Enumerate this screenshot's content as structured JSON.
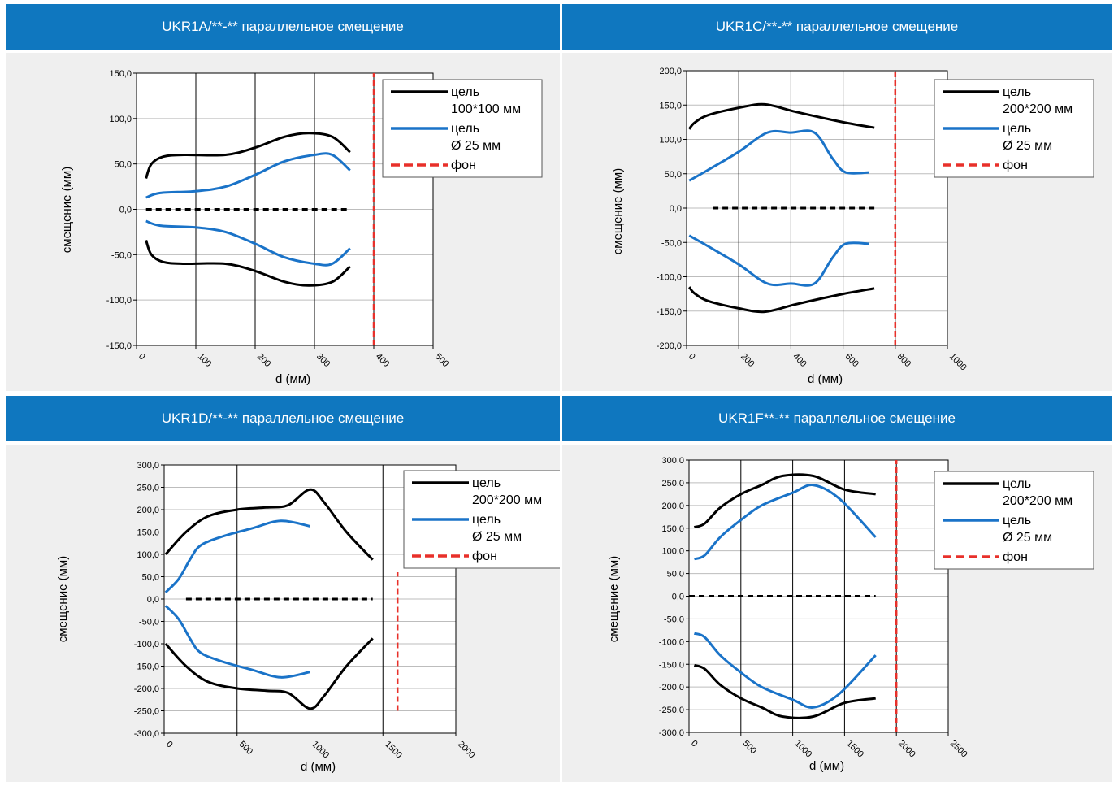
{
  "chart_data": [
    {
      "type": "line",
      "title": "UKR1A/**-** параллельное смещение",
      "xlabel": "d (мм)",
      "ylabel": "смещение (мм)",
      "xlim": [
        0,
        500
      ],
      "ylim": [
        -150,
        150
      ],
      "xticks": [
        0,
        100,
        200,
        300,
        400,
        500
      ],
      "yticks": [
        -150,
        -100,
        -50,
        0,
        50,
        100,
        150
      ],
      "xtick_labels": [
        "0",
        "100",
        "200",
        "300",
        "400",
        "500"
      ],
      "ytick_labels": [
        "-150,0",
        "-100,0",
        "-50,0",
        "0,0",
        "50,0",
        "100,0",
        "150,0"
      ],
      "legend": {
        "placement": "top-right",
        "entries": [
          [
            "цель",
            "100*100 мм"
          ],
          [
            "цель",
            "Ø 25 мм"
          ],
          [
            "фон"
          ]
        ]
      },
      "series": [
        {
          "color": "#000000",
          "dash": false,
          "points": [
            [
              16,
              34
            ],
            [
              25,
              50
            ],
            [
              45,
              58
            ],
            [
              80,
              60
            ],
            [
              150,
              60
            ],
            [
              200,
              68
            ],
            [
              250,
              80
            ],
            [
              290,
              84
            ],
            [
              330,
              80
            ],
            [
              360,
              63
            ]
          ]
        },
        {
          "color": "#000000",
          "dash": false,
          "points": [
            [
              16,
              -34
            ],
            [
              25,
              -50
            ],
            [
              45,
              -58
            ],
            [
              80,
              -60
            ],
            [
              150,
              -60
            ],
            [
              200,
              -68
            ],
            [
              250,
              -80
            ],
            [
              290,
              -84
            ],
            [
              330,
              -80
            ],
            [
              360,
              -63
            ]
          ]
        },
        {
          "color": "#1a73c8",
          "dash": false,
          "points": [
            [
              16,
              13
            ],
            [
              40,
              18
            ],
            [
              100,
              20
            ],
            [
              150,
              25
            ],
            [
              200,
              38
            ],
            [
              250,
              53
            ],
            [
              300,
              60
            ],
            [
              330,
              60
            ],
            [
              360,
              43
            ]
          ]
        },
        {
          "color": "#1a73c8",
          "dash": false,
          "points": [
            [
              16,
              -13
            ],
            [
              40,
              -18
            ],
            [
              100,
              -20
            ],
            [
              150,
              -25
            ],
            [
              200,
              -38
            ],
            [
              250,
              -53
            ],
            [
              300,
              -60
            ],
            [
              330,
              -60
            ],
            [
              360,
              -43
            ]
          ]
        },
        {
          "color": "#000000",
          "dash": true,
          "points": [
            [
              16,
              0
            ],
            [
              360,
              0
            ]
          ]
        },
        {
          "color": "#e8302a",
          "dash": true,
          "points": [
            [
              400,
              -150
            ],
            [
              400,
              150
            ]
          ]
        }
      ]
    },
    {
      "type": "line",
      "title": "UKR1C/**-** параллельное смещение",
      "xlabel": "d (мм)",
      "ylabel": "смещение (мм)",
      "xlim": [
        0,
        1000
      ],
      "ylim": [
        -200,
        200
      ],
      "xticks": [
        0,
        200,
        400,
        600,
        800,
        1000
      ],
      "yticks": [
        -200,
        -150,
        -100,
        -50,
        0,
        50,
        100,
        150,
        200
      ],
      "xtick_labels": [
        "0",
        "200",
        "400",
        "600",
        "800",
        "1000"
      ],
      "ytick_labels": [
        "-200,0",
        "-150,0",
        "-100,0",
        "-50,0",
        "0,0",
        "50,0",
        "100,0",
        "150,0",
        "200,0"
      ],
      "legend": {
        "placement": "top-right",
        "entries": [
          [
            "цель",
            "200*200 мм"
          ],
          [
            "цель",
            "Ø 25 мм"
          ],
          [
            "фон"
          ]
        ]
      },
      "series": [
        {
          "color": "#000000",
          "dash": false,
          "points": [
            [
              10,
              115
            ],
            [
              30,
              124
            ],
            [
              80,
              135
            ],
            [
              200,
              146
            ],
            [
              300,
              151
            ],
            [
              420,
              140
            ],
            [
              600,
              125
            ],
            [
              720,
              117
            ]
          ]
        },
        {
          "color": "#000000",
          "dash": false,
          "points": [
            [
              10,
              -115
            ],
            [
              30,
              -124
            ],
            [
              80,
              -135
            ],
            [
              200,
              -146
            ],
            [
              300,
              -151
            ],
            [
              420,
              -140
            ],
            [
              600,
              -125
            ],
            [
              720,
              -117
            ]
          ]
        },
        {
          "color": "#1a73c8",
          "dash": false,
          "points": [
            [
              10,
              40
            ],
            [
              80,
              55
            ],
            [
              200,
              82
            ],
            [
              310,
              110
            ],
            [
              400,
              110
            ],
            [
              490,
              110
            ],
            [
              560,
              72
            ],
            [
              610,
              52
            ],
            [
              700,
              52
            ]
          ]
        },
        {
          "color": "#1a73c8",
          "dash": false,
          "points": [
            [
              10,
              -40
            ],
            [
              80,
              -55
            ],
            [
              200,
              -82
            ],
            [
              310,
              -110
            ],
            [
              400,
              -110
            ],
            [
              490,
              -110
            ],
            [
              560,
              -72
            ],
            [
              610,
              -52
            ],
            [
              700,
              -52
            ]
          ]
        },
        {
          "color": "#000000",
          "dash": true,
          "points": [
            [
              100,
              0
            ],
            [
              720,
              0
            ]
          ]
        },
        {
          "color": "#e8302a",
          "dash": true,
          "points": [
            [
              800,
              -200
            ],
            [
              800,
              200
            ]
          ]
        }
      ]
    },
    {
      "type": "line",
      "title": "UKR1D/**-** параллельное смещение",
      "xlabel": "d (мм)",
      "ylabel": "смещение (мм)",
      "xlim": [
        0,
        2000
      ],
      "ylim": [
        -300,
        300
      ],
      "xticks": [
        0,
        500,
        1000,
        1500,
        2000
      ],
      "yticks": [
        -300,
        -250,
        -200,
        -150,
        -100,
        -50,
        0,
        50,
        100,
        150,
        200,
        250,
        300
      ],
      "xtick_labels": [
        "0",
        "500",
        "1000",
        "1500",
        "2000"
      ],
      "ytick_labels": [
        "-300,0",
        "-250,0",
        "-200,0",
        "-150,0",
        "-100,0",
        "-50,0",
        "0,0",
        "50,0",
        "100,0",
        "150,0",
        "200,0",
        "250,0",
        "300,0"
      ],
      "legend": {
        "placement": "top-right",
        "entries": [
          [
            "цель",
            "200*200 мм"
          ],
          [
            "цель",
            "Ø 25 мм"
          ],
          [
            "фон"
          ]
        ]
      },
      "series": [
        {
          "color": "#000000",
          "dash": false,
          "points": [
            [
              10,
              100
            ],
            [
              150,
              150
            ],
            [
              300,
              185
            ],
            [
              500,
              200
            ],
            [
              700,
              205
            ],
            [
              850,
              210
            ],
            [
              1000,
              245
            ],
            [
              1100,
              215
            ],
            [
              1250,
              150
            ],
            [
              1430,
              88
            ]
          ]
        },
        {
          "color": "#000000",
          "dash": false,
          "points": [
            [
              10,
              -100
            ],
            [
              150,
              -150
            ],
            [
              300,
              -185
            ],
            [
              500,
              -200
            ],
            [
              700,
              -205
            ],
            [
              850,
              -210
            ],
            [
              1000,
              -245
            ],
            [
              1100,
              -215
            ],
            [
              1250,
              -150
            ],
            [
              1430,
              -88
            ]
          ]
        },
        {
          "color": "#1a73c8",
          "dash": false,
          "points": [
            [
              10,
              15
            ],
            [
              100,
              45
            ],
            [
              180,
              90
            ],
            [
              250,
              120
            ],
            [
              400,
              140
            ],
            [
              600,
              158
            ],
            [
              800,
              175
            ],
            [
              1000,
              163
            ]
          ]
        },
        {
          "color": "#1a73c8",
          "dash": false,
          "points": [
            [
              10,
              -15
            ],
            [
              100,
              -45
            ],
            [
              180,
              -90
            ],
            [
              250,
              -120
            ],
            [
              400,
              -140
            ],
            [
              600,
              -158
            ],
            [
              800,
              -175
            ],
            [
              1000,
              -163
            ]
          ]
        },
        {
          "color": "#000000",
          "dash": true,
          "points": [
            [
              150,
              0
            ],
            [
              1430,
              0
            ]
          ]
        },
        {
          "color": "#e8302a",
          "dash": true,
          "points": [
            [
              1600,
              -250
            ],
            [
              1600,
              60
            ]
          ]
        }
      ]
    },
    {
      "type": "line",
      "title": "UKR1F**-** параллельное смещение",
      "xlabel": "d (мм)",
      "ylabel": "смещение (мм)",
      "xlim": [
        0,
        2500
      ],
      "ylim": [
        -300,
        300
      ],
      "xticks": [
        0,
        500,
        1000,
        1500,
        2000,
        2500
      ],
      "yticks": [
        -300,
        -250,
        -200,
        -150,
        -100,
        -50,
        0,
        50,
        100,
        150,
        200,
        250,
        300
      ],
      "xtick_labels": [
        "0",
        "500",
        "1000",
        "1500",
        "2000",
        "2500"
      ],
      "ytick_labels": [
        "-300,0",
        "-250,0",
        "-200,0",
        "-150,0",
        "-100,0",
        "-50,0",
        "0,0",
        "50,0",
        "100,0",
        "150,0",
        "200,0",
        "250,0",
        "300,0"
      ],
      "legend": {
        "placement": "top-right",
        "entries": [
          [
            "цель",
            "200*200 мм"
          ],
          [
            "цель",
            "Ø 25 мм"
          ],
          [
            "фон"
          ]
        ]
      },
      "series": [
        {
          "color": "#000000",
          "dash": false,
          "points": [
            [
              50,
              152
            ],
            [
              150,
              160
            ],
            [
              300,
              195
            ],
            [
              500,
              225
            ],
            [
              700,
              245
            ],
            [
              900,
              265
            ],
            [
              1200,
              265
            ],
            [
              1500,
              235
            ],
            [
              1800,
              225
            ]
          ]
        },
        {
          "color": "#000000",
          "dash": false,
          "points": [
            [
              50,
              -152
            ],
            [
              150,
              -160
            ],
            [
              300,
              -195
            ],
            [
              500,
              -225
            ],
            [
              700,
              -245
            ],
            [
              900,
              -265
            ],
            [
              1200,
              -265
            ],
            [
              1500,
              -235
            ],
            [
              1800,
              -225
            ]
          ]
        },
        {
          "color": "#1a73c8",
          "dash": false,
          "points": [
            [
              50,
              82
            ],
            [
              150,
              90
            ],
            [
              300,
              130
            ],
            [
              500,
              168
            ],
            [
              700,
              200
            ],
            [
              1000,
              228
            ],
            [
              1200,
              245
            ],
            [
              1450,
              215
            ],
            [
              1800,
              130
            ]
          ]
        },
        {
          "color": "#1a73c8",
          "dash": false,
          "points": [
            [
              50,
              -82
            ],
            [
              150,
              -90
            ],
            [
              300,
              -130
            ],
            [
              500,
              -168
            ],
            [
              700,
              -200
            ],
            [
              1000,
              -228
            ],
            [
              1200,
              -245
            ],
            [
              1450,
              -215
            ],
            [
              1800,
              -130
            ]
          ]
        },
        {
          "color": "#000000",
          "dash": true,
          "points": [
            [
              0,
              0
            ],
            [
              1800,
              0
            ]
          ]
        },
        {
          "color": "#e8302a",
          "dash": true,
          "points": [
            [
              2000,
              -300
            ],
            [
              2000,
              300
            ]
          ]
        }
      ]
    }
  ]
}
